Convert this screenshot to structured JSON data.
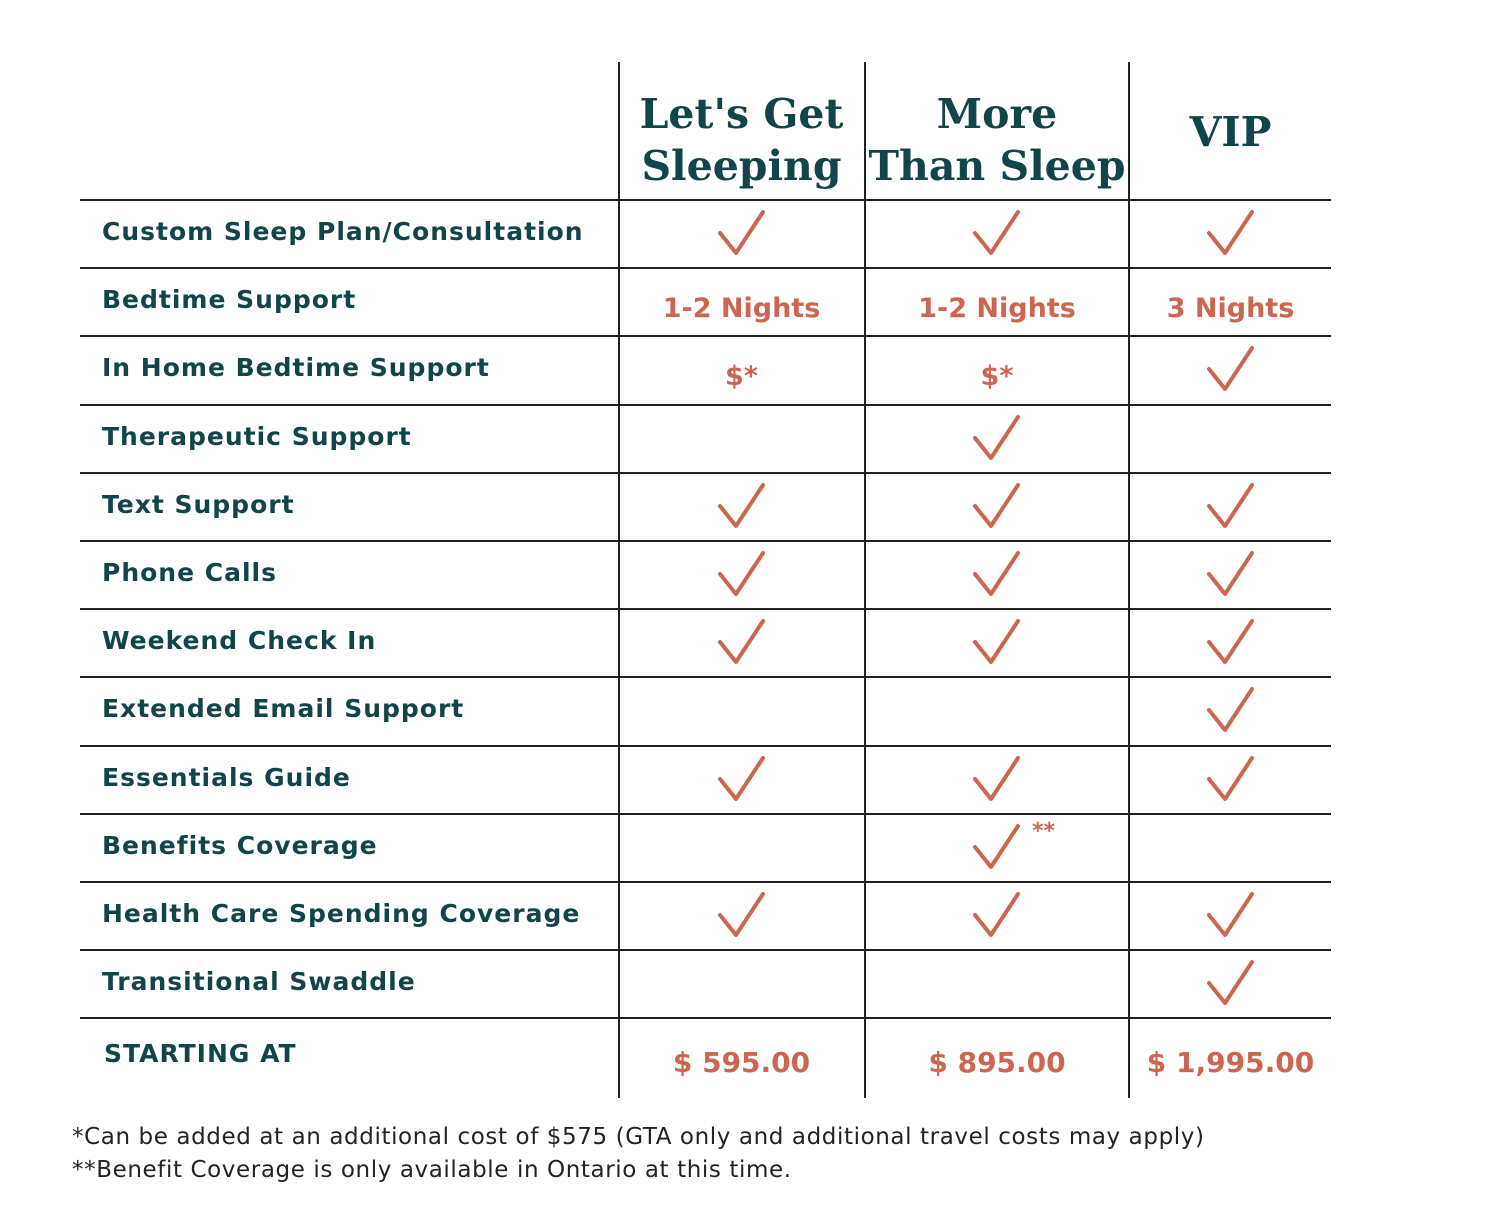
{
  "plans": [
    {
      "name_line1": "Let's Get",
      "name_line2": "Sleeping"
    },
    {
      "name_line1": "More",
      "name_line2": "Than Sleep"
    },
    {
      "name_line1": "VIP",
      "name_line2": ""
    }
  ],
  "rows": [
    {
      "label": "Custom Sleep Plan/Consultation",
      "cells": [
        {
          "check": true
        },
        {
          "check": true
        },
        {
          "check": true
        }
      ]
    },
    {
      "label": "Bedtime Support",
      "cells": [
        {
          "text": "1-2 Nights"
        },
        {
          "text": "1-2 Nights"
        },
        {
          "text": "3 Nights"
        }
      ]
    },
    {
      "label": "In Home Bedtime Support",
      "cells": [
        {
          "text": "$*"
        },
        {
          "text": "$*"
        },
        {
          "check": true
        }
      ]
    },
    {
      "label": "Therapeutic Support",
      "cells": [
        {},
        {
          "check": true
        },
        {}
      ]
    },
    {
      "label": "Text Support",
      "cells": [
        {
          "check": true
        },
        {
          "check": true
        },
        {
          "check": true
        }
      ]
    },
    {
      "label": "Phone Calls",
      "cells": [
        {
          "check": true
        },
        {
          "check": true
        },
        {
          "check": true
        }
      ]
    },
    {
      "label": "Weekend Check In",
      "cells": [
        {
          "check": true
        },
        {
          "check": true
        },
        {
          "check": true
        }
      ]
    },
    {
      "label": "Extended Email Support",
      "cells": [
        {},
        {},
        {
          "check": true
        }
      ]
    },
    {
      "label": "Essentials Guide",
      "cells": [
        {
          "check": true
        },
        {
          "check": true
        },
        {
          "check": true
        }
      ]
    },
    {
      "label": "Benefits Coverage",
      "cells": [
        {},
        {
          "check": true,
          "mark": "**"
        },
        {}
      ]
    },
    {
      "label": "Health Care Spending Coverage",
      "cells": [
        {
          "check": true
        },
        {
          "check": true
        },
        {
          "check": true
        }
      ]
    },
    {
      "label": "Transitional Swaddle",
      "cells": [
        {},
        {},
        {
          "check": true
        }
      ]
    }
  ],
  "starting": {
    "label": "STARTING AT",
    "prices": [
      "$ 595.00",
      "$ 895.00",
      "$ 1,995.00"
    ]
  },
  "footnotes": [
    "*Can be added at an additional cost of $575 (GTA only and additional travel costs may apply)",
    "**Benefit Coverage is only available in Ontario at this time."
  ],
  "colors": {
    "heading": "#11454a",
    "accent": "#cc6650",
    "lines": "#1e2323"
  },
  "icons": {
    "check": "check-icon"
  }
}
